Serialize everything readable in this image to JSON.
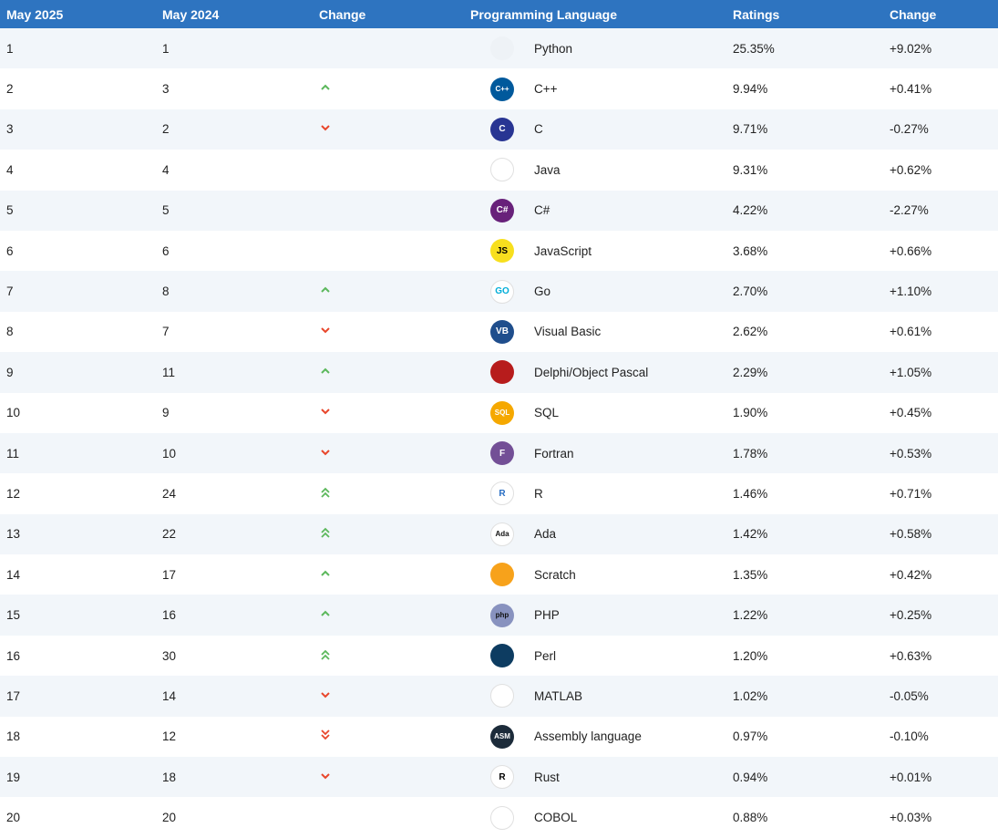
{
  "header": {
    "col_year_current": "May 2025",
    "col_year_previous": "May 2024",
    "col_change_rank": "Change",
    "col_language": "Programming Language",
    "col_ratings": "Ratings",
    "col_change_rating": "Change"
  },
  "rows": [
    {
      "rank": "1",
      "prev": "1",
      "trend": "none",
      "icon": "python-logo-icon",
      "lang": "Python",
      "rating": "25.35%",
      "change": "+9.02%"
    },
    {
      "rank": "2",
      "prev": "3",
      "trend": "up",
      "icon": "cpp-logo-icon",
      "lang": "C++",
      "rating": "9.94%",
      "change": "+0.41%"
    },
    {
      "rank": "3",
      "prev": "2",
      "trend": "down",
      "icon": "c-logo-icon",
      "lang": "C",
      "rating": "9.71%",
      "change": "-0.27%"
    },
    {
      "rank": "4",
      "prev": "4",
      "trend": "none",
      "icon": "java-logo-icon",
      "lang": "Java",
      "rating": "9.31%",
      "change": "+0.62%"
    },
    {
      "rank": "5",
      "prev": "5",
      "trend": "none",
      "icon": "csharp-logo-icon",
      "lang": "C#",
      "rating": "4.22%",
      "change": "-2.27%"
    },
    {
      "rank": "6",
      "prev": "6",
      "trend": "none",
      "icon": "javascript-logo-icon",
      "lang": "JavaScript",
      "rating": "3.68%",
      "change": "+0.66%"
    },
    {
      "rank": "7",
      "prev": "8",
      "trend": "up",
      "icon": "go-logo-icon",
      "lang": "Go",
      "rating": "2.70%",
      "change": "+1.10%"
    },
    {
      "rank": "8",
      "prev": "7",
      "trend": "down",
      "icon": "visual-basic-logo-icon",
      "lang": "Visual Basic",
      "rating": "2.62%",
      "change": "+0.61%"
    },
    {
      "rank": "9",
      "prev": "11",
      "trend": "up",
      "icon": "delphi-logo-icon",
      "lang": "Delphi/Object Pascal",
      "rating": "2.29%",
      "change": "+1.05%"
    },
    {
      "rank": "10",
      "prev": "9",
      "trend": "down",
      "icon": "sql-logo-icon",
      "lang": "SQL",
      "rating": "1.90%",
      "change": "+0.45%"
    },
    {
      "rank": "11",
      "prev": "10",
      "trend": "down",
      "icon": "fortran-logo-icon",
      "lang": "Fortran",
      "rating": "1.78%",
      "change": "+0.53%"
    },
    {
      "rank": "12",
      "prev": "24",
      "trend": "up2",
      "icon": "r-logo-icon",
      "lang": "R",
      "rating": "1.46%",
      "change": "+0.71%"
    },
    {
      "rank": "13",
      "prev": "22",
      "trend": "up2",
      "icon": "ada-logo-icon",
      "lang": "Ada",
      "rating": "1.42%",
      "change": "+0.58%"
    },
    {
      "rank": "14",
      "prev": "17",
      "trend": "up",
      "icon": "scratch-logo-icon",
      "lang": "Scratch",
      "rating": "1.35%",
      "change": "+0.42%"
    },
    {
      "rank": "15",
      "prev": "16",
      "trend": "up",
      "icon": "php-logo-icon",
      "lang": "PHP",
      "rating": "1.22%",
      "change": "+0.25%"
    },
    {
      "rank": "16",
      "prev": "30",
      "trend": "up2",
      "icon": "perl-logo-icon",
      "lang": "Perl",
      "rating": "1.20%",
      "change": "+0.63%"
    },
    {
      "rank": "17",
      "prev": "14",
      "trend": "down",
      "icon": "matlab-logo-icon",
      "lang": "MATLAB",
      "rating": "1.02%",
      "change": "-0.05%"
    },
    {
      "rank": "18",
      "prev": "12",
      "trend": "down2",
      "icon": "assembly-logo-icon",
      "lang": "Assembly language",
      "rating": "0.97%",
      "change": "-0.10%"
    },
    {
      "rank": "19",
      "prev": "18",
      "trend": "down",
      "icon": "rust-logo-icon",
      "lang": "Rust",
      "rating": "0.94%",
      "change": "+0.01%"
    },
    {
      "rank": "20",
      "prev": "20",
      "trend": "none",
      "icon": "cobol-logo-icon",
      "lang": "COBOL",
      "rating": "0.88%",
      "change": "+0.03%"
    }
  ],
  "logos": {
    "python-logo-icon": {
      "bg": "#eef2f6",
      "fg": "#3572a5",
      "text": ""
    },
    "cpp-logo-icon": {
      "bg": "#00599c",
      "fg": "#ffffff",
      "text": "C++"
    },
    "c-logo-icon": {
      "bg": "#283593",
      "fg": "#ffffff",
      "text": "C"
    },
    "java-logo-icon": {
      "bg": "#ffffff",
      "fg": "#e76f00",
      "text": ""
    },
    "csharp-logo-icon": {
      "bg": "#68217a",
      "fg": "#ffffff",
      "text": "C#"
    },
    "javascript-logo-icon": {
      "bg": "#f7df1e",
      "fg": "#000000",
      "text": "JS"
    },
    "go-logo-icon": {
      "bg": "#ffffff",
      "fg": "#00add8",
      "text": "GO"
    },
    "visual-basic-logo-icon": {
      "bg": "#1f4e8c",
      "fg": "#ffffff",
      "text": "VB"
    },
    "delphi-logo-icon": {
      "bg": "#b71c1c",
      "fg": "#ffffff",
      "text": ""
    },
    "sql-logo-icon": {
      "bg": "#f5a800",
      "fg": "#ffffff",
      "text": "SQL"
    },
    "fortran-logo-icon": {
      "bg": "#734f96",
      "fg": "#ffffff",
      "text": "F"
    },
    "r-logo-icon": {
      "bg": "#ffffff",
      "fg": "#276dc3",
      "text": "R"
    },
    "ada-logo-icon": {
      "bg": "#ffffff",
      "fg": "#111111",
      "text": "Ada"
    },
    "scratch-logo-icon": {
      "bg": "#f7a21b",
      "fg": "#ffffff",
      "text": ""
    },
    "php-logo-icon": {
      "bg": "#8892bf",
      "fg": "#111111",
      "text": "php"
    },
    "perl-logo-icon": {
      "bg": "#0d3c61",
      "fg": "#ffffff",
      "text": ""
    },
    "matlab-logo-icon": {
      "bg": "#ffffff",
      "fg": "#e16737",
      "text": ""
    },
    "assembly-logo-icon": {
      "bg": "#1c2b3a",
      "fg": "#ffffff",
      "text": "ASM"
    },
    "rust-logo-icon": {
      "bg": "#ffffff",
      "fg": "#000000",
      "text": "R"
    },
    "cobol-logo-icon": {
      "bg": "#ffffff",
      "fg": "#1a73c9",
      "text": ""
    }
  },
  "colors": {
    "header_bg": "#2e74c0",
    "alt_row_bg": "#f2f6fa",
    "up_arrow": "#5cb85c",
    "down_arrow": "#e8462b"
  }
}
